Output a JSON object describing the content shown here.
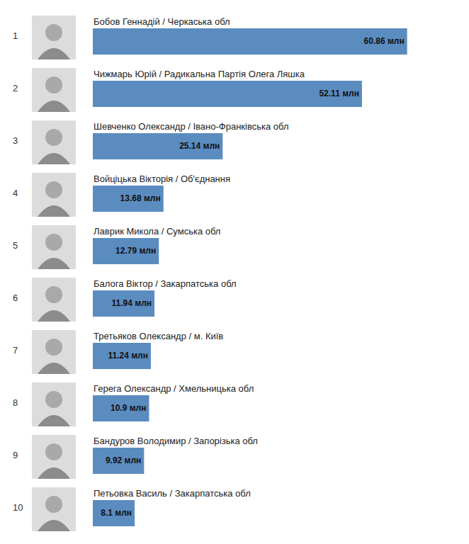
{
  "chart_data": {
    "type": "bar",
    "orientation": "horizontal",
    "data_labels": true,
    "tick_labels": false,
    "grid": false,
    "color": "#5b8cc0",
    "xlim": [
      0,
      62
    ],
    "ranks": [
      1,
      2,
      3,
      4,
      5,
      6,
      7,
      8,
      9,
      10
    ],
    "categories": [
      "Бобов Геннадій / Черкаська обл",
      "Чижмарь Юрій / Радикальна Партія Олега Ляшка",
      "Шевченко Олександр / Івано-Франківська обл",
      "Войціцька Вікторія / Об'єднання",
      "Лаврик Микола / Сумська обл",
      "Балога Віктор / Закарпатська обл",
      "Третьяков Олександр / м. Київ",
      "Герега Олександр / Хмельницька обл",
      "Бандуров Володимир / Запорізька обл",
      "Петьовка Василь / Закарпатська обл"
    ],
    "values": [
      60.86,
      52.11,
      25.14,
      13.68,
      12.79,
      11.94,
      11.24,
      10.9,
      9.92,
      8.1
    ],
    "value_labels": [
      "60.86 млн",
      "52.11 млн",
      "25.14 млн",
      "13.68 млн",
      "12.79 млн",
      "11.94 млн",
      "11.24 млн",
      "10.9 млн",
      "9.92 млн",
      "8.1 млн"
    ]
  }
}
